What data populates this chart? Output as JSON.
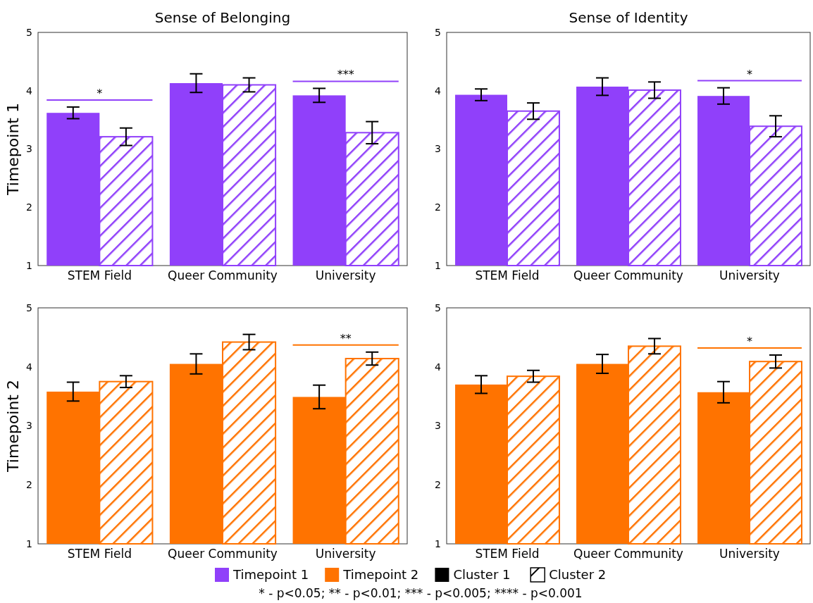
{
  "chart_data": [
    {
      "type": "bar",
      "title": "Sense of Belonging",
      "ylabel": "Timepoint 1",
      "categories": [
        "STEM Field",
        "Queer Community",
        "University"
      ],
      "ylim": [
        1,
        5
      ],
      "yticks": [
        1,
        2,
        3,
        4,
        5
      ],
      "series": [
        {
          "color": "#9040fa",
          "values": [
            3.62,
            4.13,
            3.92
          ],
          "errors": [
            0.1,
            0.16,
            0.12
          ]
        },
        {
          "color": "#9040fa",
          "values": [
            3.21,
            4.1,
            3.28
          ],
          "errors": [
            0.15,
            0.12,
            0.19
          ]
        }
      ],
      "annotations": [
        "*",
        "***"
      ]
    },
    {
      "type": "bar",
      "title": "Sense of Identity",
      "categories": [
        "STEM Field",
        "Queer Community",
        "University"
      ],
      "ylim": [
        1,
        5
      ],
      "yticks": [
        1,
        2,
        3,
        4,
        5
      ],
      "series": [
        {
          "color": "#9040fa",
          "values": [
            3.93,
            4.07,
            3.91
          ],
          "errors": [
            0.1,
            0.15,
            0.14
          ]
        },
        {
          "color": "#9040fa",
          "values": [
            3.65,
            4.01,
            3.39
          ],
          "errors": [
            0.14,
            0.14,
            0.18
          ]
        }
      ],
      "annotations": [
        "*"
      ]
    },
    {
      "type": "bar",
      "ylabel": "Timepoint 2",
      "categories": [
        "STEM Field",
        "Queer Community",
        "University"
      ],
      "ylim": [
        1,
        5
      ],
      "yticks": [
        1,
        2,
        3,
        4,
        5
      ],
      "series": [
        {
          "color": "#ff7300",
          "values": [
            3.58,
            4.05,
            3.49
          ],
          "errors": [
            0.16,
            0.17,
            0.2
          ]
        },
        {
          "color": "#ff7300",
          "values": [
            3.75,
            4.42,
            4.14
          ],
          "errors": [
            0.1,
            0.13,
            0.11
          ]
        }
      ],
      "annotations": [
        "**"
      ]
    },
    {
      "type": "bar",
      "categories": [
        "STEM Field",
        "Queer Community",
        "University"
      ],
      "ylim": [
        1,
        5
      ],
      "yticks": [
        1,
        2,
        3,
        4,
        5
      ],
      "legend": "bottom",
      "series": [
        {
          "name": "Cluster 1",
          "color": "#ff7300",
          "values": [
            3.7,
            4.05,
            3.57
          ],
          "errors": [
            0.15,
            0.16,
            0.18
          ]
        },
        {
          "name": "Cluster 2",
          "color": "#ff7300",
          "values": [
            3.84,
            4.35,
            4.09
          ],
          "errors": [
            0.1,
            0.13,
            0.11
          ]
        }
      ],
      "annotations": [
        "*",
        "* - p<0.05; ** - p<0.01; *** - p<0.005; **** - p<0.001"
      ]
    }
  ]
}
